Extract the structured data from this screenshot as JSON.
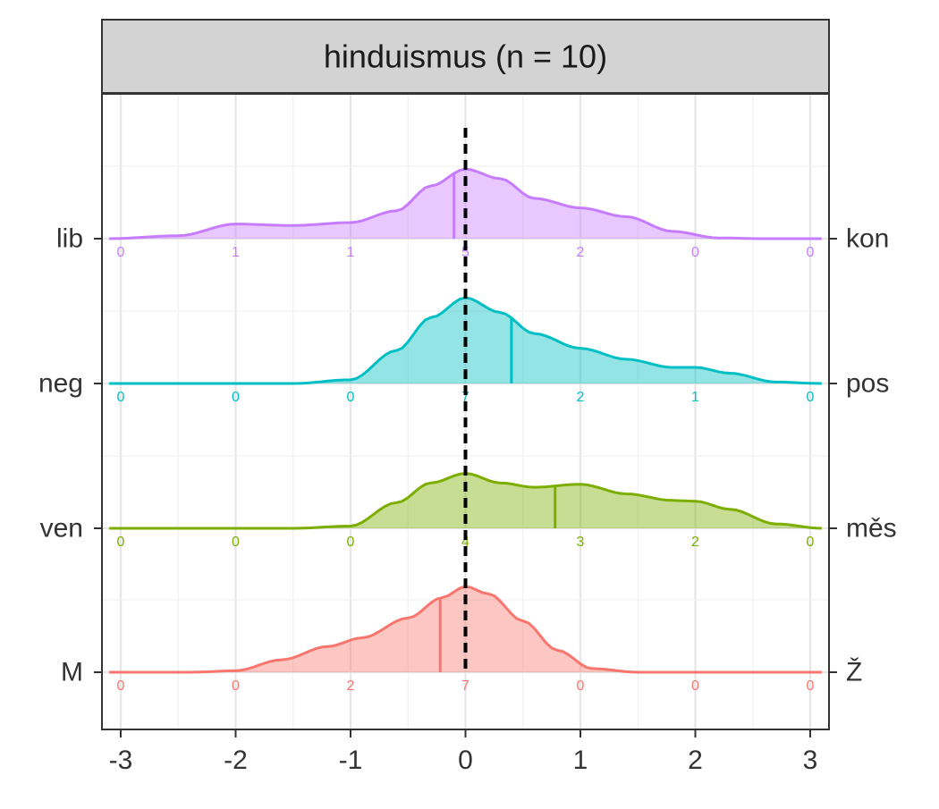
{
  "chart_data": {
    "type": "area",
    "subtype": "ridgeline-density",
    "title": "hinduismus (n = 10)",
    "xlim": [
      -3,
      3
    ],
    "x_ticks": [
      -3,
      -2,
      -1,
      0,
      1,
      2,
      3
    ],
    "grid": true,
    "reference_line": {
      "x": 0,
      "style": "dashed",
      "color": "#000000"
    },
    "count_positions": [
      -3,
      -2,
      -1,
      0,
      1,
      2,
      3
    ],
    "series": [
      {
        "left_label": "lib",
        "right_label": "kon",
        "color": "#C77CFF",
        "mean": -0.1,
        "counts": [
          0,
          1,
          1,
          5,
          2,
          0,
          0
        ],
        "density": [
          [
            -3.1,
            0.0
          ],
          [
            -2.5,
            0.04
          ],
          [
            -2.0,
            0.2
          ],
          [
            -1.5,
            0.18
          ],
          [
            -1.0,
            0.22
          ],
          [
            -0.6,
            0.38
          ],
          [
            -0.3,
            0.72
          ],
          [
            0.0,
            0.95
          ],
          [
            0.3,
            0.82
          ],
          [
            0.6,
            0.55
          ],
          [
            1.0,
            0.42
          ],
          [
            1.4,
            0.3
          ],
          [
            1.8,
            0.1
          ],
          [
            2.2,
            0.01
          ],
          [
            2.6,
            0.0
          ],
          [
            3.1,
            0.0
          ]
        ]
      },
      {
        "left_label": "neg",
        "right_label": "pos",
        "color": "#00BFC4",
        "mean": 0.4,
        "counts": [
          0,
          0,
          0,
          7,
          2,
          1,
          0
        ],
        "density": [
          [
            -3.1,
            0.0
          ],
          [
            -1.5,
            0.0
          ],
          [
            -1.0,
            0.05
          ],
          [
            -0.6,
            0.45
          ],
          [
            -0.3,
            0.9
          ],
          [
            0.0,
            1.17
          ],
          [
            0.3,
            0.97
          ],
          [
            0.6,
            0.68
          ],
          [
            1.0,
            0.48
          ],
          [
            1.4,
            0.33
          ],
          [
            1.8,
            0.22
          ],
          [
            2.0,
            0.22
          ],
          [
            2.3,
            0.14
          ],
          [
            2.7,
            0.02
          ],
          [
            3.1,
            0.0
          ]
        ]
      },
      {
        "left_label": "ven",
        "right_label": "měs",
        "color": "#7CAE00",
        "mean": 0.78,
        "counts": [
          0,
          0,
          0,
          4,
          3,
          2,
          0
        ],
        "density": [
          [
            -3.1,
            0.0
          ],
          [
            -1.5,
            0.0
          ],
          [
            -1.0,
            0.03
          ],
          [
            -0.6,
            0.35
          ],
          [
            -0.3,
            0.62
          ],
          [
            0.0,
            0.75
          ],
          [
            0.3,
            0.62
          ],
          [
            0.6,
            0.56
          ],
          [
            1.0,
            0.6
          ],
          [
            1.4,
            0.47
          ],
          [
            1.8,
            0.38
          ],
          [
            2.0,
            0.37
          ],
          [
            2.3,
            0.26
          ],
          [
            2.7,
            0.06
          ],
          [
            3.1,
            0.0
          ]
        ]
      },
      {
        "left_label": "M",
        "right_label": "Ž",
        "color": "#F8766D",
        "mean": -0.22,
        "counts": [
          0,
          0,
          2,
          7,
          0,
          0,
          0
        ],
        "density": [
          [
            -3.1,
            0.0
          ],
          [
            -2.4,
            0.0
          ],
          [
            -2.0,
            0.02
          ],
          [
            -1.6,
            0.17
          ],
          [
            -1.2,
            0.35
          ],
          [
            -0.9,
            0.47
          ],
          [
            -0.5,
            0.74
          ],
          [
            -0.2,
            1.02
          ],
          [
            0.0,
            1.17
          ],
          [
            0.2,
            1.07
          ],
          [
            0.5,
            0.7
          ],
          [
            0.8,
            0.3
          ],
          [
            1.1,
            0.05
          ],
          [
            1.5,
            0.0
          ],
          [
            3.1,
            0.0
          ]
        ]
      }
    ]
  }
}
